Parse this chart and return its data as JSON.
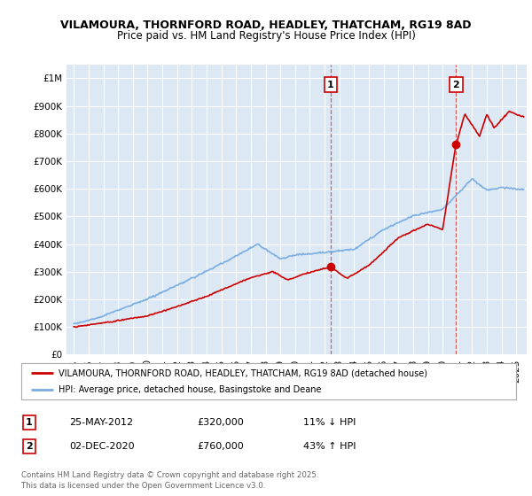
{
  "title_line1": "VILAMOURA, THORNFORD ROAD, HEADLEY, THATCHAM, RG19 8AD",
  "title_line2": "Price paid vs. HM Land Registry's House Price Index (HPI)",
  "bg_color": "#dce9f5",
  "outer_bg": "#ffffff",
  "red_color": "#cc0000",
  "blue_color": "#7aade0",
  "sale1_year": 2012.4,
  "sale1_price": 320000,
  "sale2_year": 2020.92,
  "sale2_price": 760000,
  "legend_line1": "VILAMOURA, THORNFORD ROAD, HEADLEY, THATCHAM, RG19 8AD (detached house)",
  "legend_line2": "HPI: Average price, detached house, Basingstoke and Deane",
  "note1_label": "1",
  "note1_date": "25-MAY-2012",
  "note1_price": "£320,000",
  "note1_hpi": "11% ↓ HPI",
  "note2_label": "2",
  "note2_date": "02-DEC-2020",
  "note2_price": "£760,000",
  "note2_hpi": "43% ↑ HPI",
  "footer": "Contains HM Land Registry data © Crown copyright and database right 2025.\nThis data is licensed under the Open Government Licence v3.0.",
  "ylim_max": 1050000,
  "xlim_min": 1994.5,
  "xlim_max": 2025.7
}
